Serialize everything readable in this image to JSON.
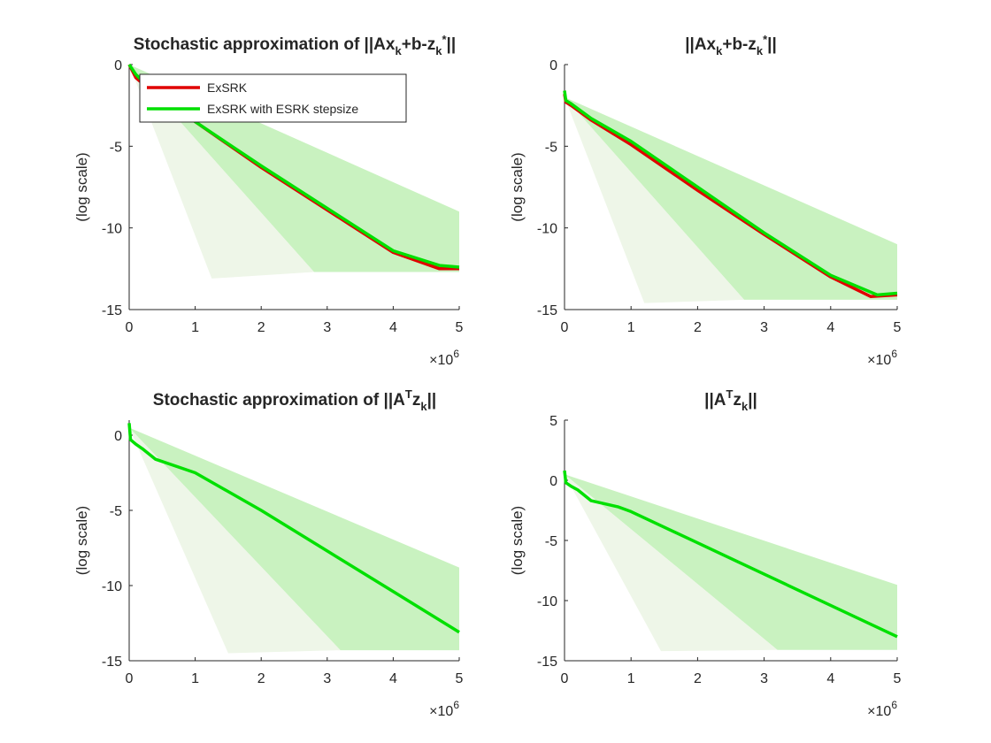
{
  "figure": {
    "legend": {
      "entries": [
        {
          "label": "ExSRK",
          "color": "#e00000"
        },
        {
          "label": "ExSRK with ESRK stepsize",
          "color": "#00e000"
        }
      ],
      "placement": "top-right inside first subplot"
    }
  },
  "chart_data": [
    {
      "type": "line",
      "title": {
        "pre": "Stochastic approximation of ||Ax",
        "sub1": "k",
        "mid": "+b-z",
        "sub2": "k",
        "sup": "*",
        "post": "||"
      },
      "ylabel": "(log scale)",
      "xlim": [
        0,
        5000000
      ],
      "ylim": [
        -15,
        0
      ],
      "xticks": [
        0,
        1,
        2,
        3,
        4,
        5
      ],
      "yticks": [
        0,
        -5,
        -10,
        -15
      ],
      "x_multiplier": "×10",
      "x_multiplier_exp": "6",
      "series": [
        {
          "name": "ExSRK",
          "color": "#e00000",
          "x": [
            0,
            100000,
            300000,
            1000000,
            2000000,
            3000000,
            4000000,
            4700000,
            5000000
          ],
          "y": [
            0,
            -0.8,
            -1.5,
            -3.5,
            -6.3,
            -8.9,
            -11.5,
            -12.5,
            -12.5
          ]
        },
        {
          "name": "ExSRK with ESRK stepsize",
          "color": "#00e000",
          "x": [
            0,
            100000,
            300000,
            1000000,
            2000000,
            3000000,
            4000000,
            4700000,
            5000000
          ],
          "y": [
            0,
            -0.6,
            -1.4,
            -3.5,
            -6.2,
            -8.8,
            -11.4,
            -12.3,
            -12.4
          ]
        }
      ],
      "bands": [
        {
          "color": "#c9f2c0",
          "upper": [
            [
              0,
              0
            ],
            [
              5000000,
              -9
            ]
          ],
          "lower": [
            [
              0,
              0
            ],
            [
              2800000,
              -12.7
            ],
            [
              5000000,
              -12.7
            ]
          ]
        },
        {
          "color": "#eef6e8",
          "upper": [
            [
              0,
              0
            ],
            [
              2800000,
              -12.7
            ]
          ],
          "lower": [
            [
              0,
              0
            ],
            [
              1250000,
              -13.1
            ],
            [
              2800000,
              -12.7
            ]
          ]
        }
      ]
    },
    {
      "type": "line",
      "title": {
        "pre": "||Ax",
        "sub1": "k",
        "mid": "+b-z",
        "sub2": "k",
        "sup": "*",
        "post": "||"
      },
      "ylabel": "(log scale)",
      "xlim": [
        0,
        5000000
      ],
      "ylim": [
        -15,
        0
      ],
      "xticks": [
        0,
        1,
        2,
        3,
        4,
        5
      ],
      "yticks": [
        0,
        -5,
        -10,
        -15
      ],
      "x_multiplier": "×10",
      "x_multiplier_exp": "6",
      "series": [
        {
          "name": "ExSRK",
          "color": "#e00000",
          "x": [
            0,
            20000,
            100000,
            400000,
            1000000,
            2000000,
            3000000,
            4000000,
            4600000,
            5000000
          ],
          "y": [
            -1.8,
            -2.3,
            -2.5,
            -3.4,
            -4.9,
            -7.7,
            -10.4,
            -13.0,
            -14.2,
            -14.1
          ]
        },
        {
          "name": "ExSRK with ESRK stepsize",
          "color": "#00e000",
          "x": [
            0,
            20000,
            100000,
            400000,
            1000000,
            2000000,
            3000000,
            4000000,
            4700000,
            5000000
          ],
          "y": [
            -1.6,
            -2.2,
            -2.4,
            -3.3,
            -4.7,
            -7.5,
            -10.3,
            -12.9,
            -14.1,
            -14.0
          ]
        }
      ],
      "bands": [
        {
          "color": "#c9f2c0",
          "upper": [
            [
              0,
              -2
            ],
            [
              5000000,
              -11
            ]
          ],
          "lower": [
            [
              0,
              -2
            ],
            [
              2700000,
              -14.4
            ],
            [
              5000000,
              -14.4
            ]
          ]
        },
        {
          "color": "#eef6e8",
          "upper": [
            [
              0,
              -2
            ],
            [
              2700000,
              -14.4
            ]
          ],
          "lower": [
            [
              0,
              -2
            ],
            [
              1200000,
              -14.6
            ],
            [
              2700000,
              -14.4
            ]
          ]
        }
      ]
    },
    {
      "type": "line",
      "title": {
        "pre": "Stochastic approximation of ||A",
        "sup": "T",
        "mid": "z",
        "sub1": "k",
        "post": "||"
      },
      "ylabel": "(log scale)",
      "xlim": [
        0,
        5000000
      ],
      "ylim": [
        -15,
        1
      ],
      "xticks": [
        0,
        1,
        2,
        3,
        4,
        5
      ],
      "yticks": [
        0,
        -5,
        -10,
        -15
      ],
      "x_multiplier": "×10",
      "x_multiplier_exp": "6",
      "series": [
        {
          "name": "ExSRK with ESRK stepsize",
          "color": "#00e000",
          "x": [
            0,
            20000,
            100000,
            200000,
            400000,
            800000,
            1000000,
            2000000,
            3000000,
            4000000,
            5000000
          ],
          "y": [
            0.8,
            -0.3,
            -0.6,
            -0.9,
            -1.6,
            -2.2,
            -2.5,
            -5.0,
            -7.7,
            -10.4,
            -13.1
          ]
        }
      ],
      "bands": [
        {
          "color": "#c9f2c0",
          "upper": [
            [
              0,
              0.5
            ],
            [
              5000000,
              -8.8
            ]
          ],
          "lower": [
            [
              0,
              0.5
            ],
            [
              3200000,
              -14.3
            ],
            [
              5000000,
              -14.3
            ]
          ]
        },
        {
          "color": "#eef6e8",
          "upper": [
            [
              0,
              0.5
            ],
            [
              3200000,
              -14.3
            ]
          ],
          "lower": [
            [
              0,
              0.5
            ],
            [
              1500000,
              -14.5
            ],
            [
              3200000,
              -14.3
            ]
          ]
        }
      ]
    },
    {
      "type": "line",
      "title": {
        "pre": "||A",
        "sup": "T",
        "mid": "z",
        "sub1": "k",
        "post": "||"
      },
      "ylabel": "(log scale)",
      "xlim": [
        0,
        5000000
      ],
      "ylim": [
        -15,
        5
      ],
      "xticks": [
        0,
        1,
        2,
        3,
        4,
        5
      ],
      "yticks": [
        5,
        0,
        -5,
        -10,
        -15
      ],
      "x_multiplier": "×10",
      "x_multiplier_exp": "6",
      "series": [
        {
          "name": "ExSRK with ESRK stepsize",
          "color": "#00e000",
          "x": [
            0,
            20000,
            100000,
            200000,
            400000,
            800000,
            1000000,
            2000000,
            3000000,
            4000000,
            5000000
          ],
          "y": [
            0.8,
            -0.2,
            -0.5,
            -0.8,
            -1.7,
            -2.2,
            -2.6,
            -5.2,
            -7.8,
            -10.4,
            -13.0
          ]
        }
      ],
      "bands": [
        {
          "color": "#c9f2c0",
          "upper": [
            [
              0,
              0.5
            ],
            [
              5000000,
              -8.7
            ]
          ],
          "lower": [
            [
              0,
              0.5
            ],
            [
              3200000,
              -14.1
            ],
            [
              5000000,
              -14.1
            ]
          ]
        },
        {
          "color": "#eef6e8",
          "upper": [
            [
              0,
              0.5
            ],
            [
              3200000,
              -14.1
            ]
          ],
          "lower": [
            [
              0,
              0.5
            ],
            [
              1450000,
              -14.2
            ],
            [
              3200000,
              -14.1
            ]
          ]
        }
      ]
    }
  ]
}
